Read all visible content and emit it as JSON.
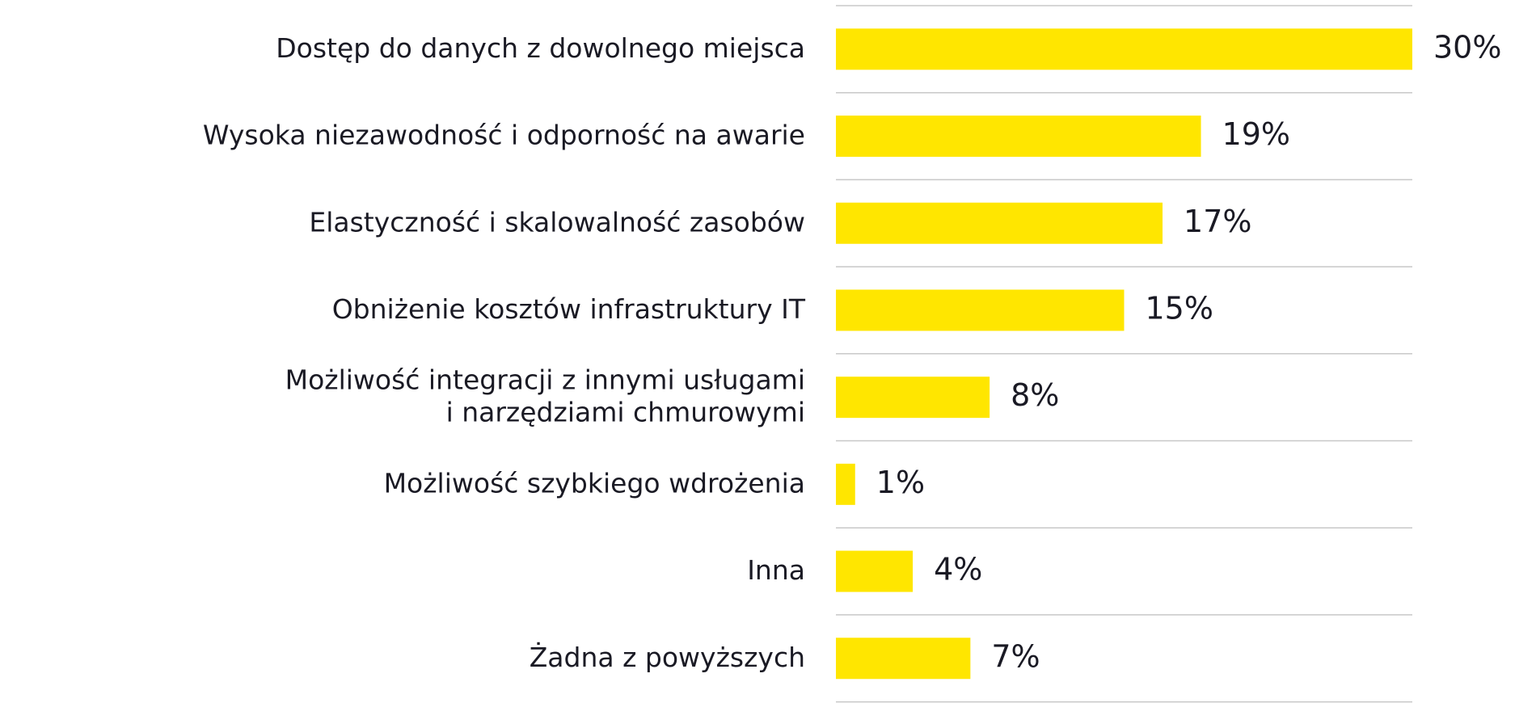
{
  "chart_data": {
    "type": "bar",
    "orientation": "horizontal",
    "categories": [
      "Dostęp do danych z dowolnego miejsca",
      "Wysoka niezawodność i odporność na awarie",
      "Elastyczność i skalowalność zasobów",
      "Obniżenie kosztów infrastruktury IT",
      "Możliwość integracji z innymi usługami\ni narzędziami chmurowymi",
      "Możliwość szybkiego wdrożenia",
      "Inna",
      "Żadna z powyższych"
    ],
    "values": [
      30,
      19,
      17,
      15,
      8,
      1,
      4,
      7
    ],
    "value_labels": [
      "30%",
      "19%",
      "17%",
      "15%",
      "8%",
      "1%",
      "4%",
      "7%"
    ],
    "color": "#ffe600"
  }
}
